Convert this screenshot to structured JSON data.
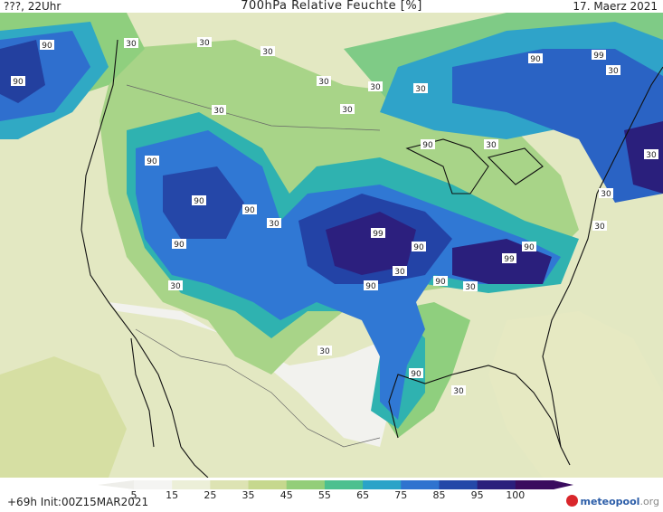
{
  "header": {
    "left": "???, 22Uhr",
    "title": "700hPa Relative Feuchte [%]",
    "date": "17. Maerz 2021"
  },
  "footer": {
    "run_info": "+69h  Init:00Z15MAR2021",
    "logo_main": "meteopool",
    "logo_tld": ".org"
  },
  "colorbar": {
    "labels": [
      "5",
      "15",
      "25",
      "35",
      "45",
      "55",
      "65",
      "75",
      "85",
      "95",
      "100"
    ],
    "colors": [
      "#f4f4f2",
      "#ecefd8",
      "#dde3b3",
      "#c6d88e",
      "#93ce79",
      "#4cc08f",
      "#2aa3c8",
      "#2f73cf",
      "#2448a8",
      "#2a1f7c",
      "#3a0c5e"
    ]
  },
  "map": {
    "colors": {
      "very_dry": "#f4f4f2",
      "dry": "#e5e9c4",
      "moist_low": "#c8d890",
      "green": "#7dcf82",
      "teal": "#2ab3a8",
      "blue": "#2f7fd6",
      "dark_blue": "#2443a6",
      "purple": "#2a1f7c"
    },
    "contour_labels": [
      "90",
      "90",
      "30",
      "30",
      "30",
      "30",
      "30",
      "30",
      "30",
      "30",
      "90",
      "90",
      "90",
      "99",
      "90",
      "99",
      "90",
      "90",
      "99",
      "90",
      "30",
      "30",
      "30",
      "30",
      "90",
      "90",
      "30",
      "30",
      "30",
      "30",
      "30",
      "90",
      "90",
      "30",
      "30"
    ]
  }
}
